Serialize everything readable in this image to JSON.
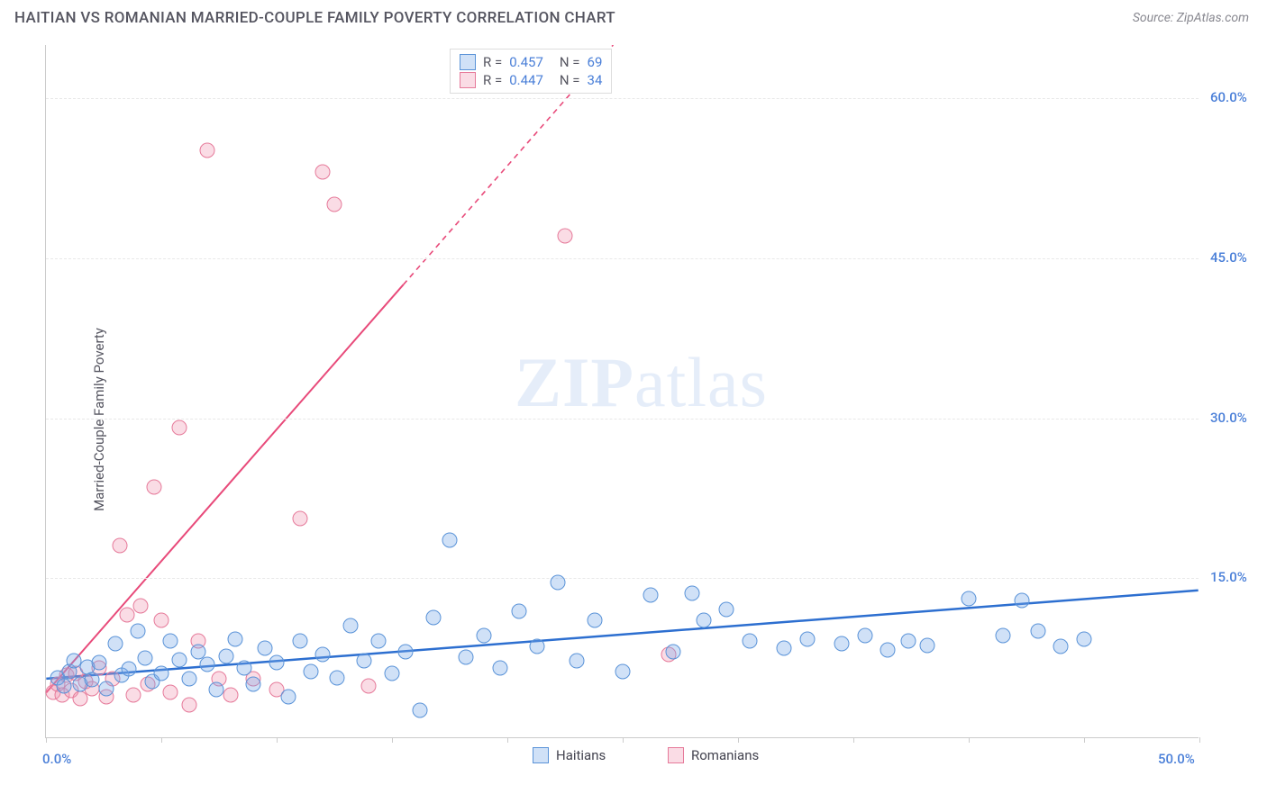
{
  "header": {
    "title": "HAITIAN VS ROMANIAN MARRIED-COUPLE FAMILY POVERTY CORRELATION CHART",
    "source_prefix": "Source: ",
    "source_name": "ZipAtlas.com"
  },
  "y_axis": {
    "label": "Married-Couple Family Poverty"
  },
  "chart": {
    "type": "scatter",
    "xlim": [
      0,
      50
    ],
    "ylim": [
      0,
      65
    ],
    "x_ticks_minor": [
      0,
      5,
      10,
      15,
      20,
      25,
      30,
      35,
      40,
      45,
      50
    ],
    "x_ticks_labeled": [
      {
        "v": 0,
        "label": "0.0%"
      },
      {
        "v": 50,
        "label": "50.0%"
      }
    ],
    "y_ticks": [
      {
        "v": 15,
        "label": "15.0%"
      },
      {
        "v": 30,
        "label": "30.0%"
      },
      {
        "v": 45,
        "label": "45.0%"
      },
      {
        "v": 60,
        "label": "60.0%"
      }
    ],
    "grid_color": "#e8e8e8",
    "axis_color": "#cccccc",
    "background_color": "#ffffff",
    "tick_label_color": "#4a7fd8",
    "tick_label_fontsize": 15,
    "marker_radius": 8.5,
    "marker_stroke_width": 1.3,
    "series": [
      {
        "name": "Haitians",
        "fill": "rgba(120,170,232,0.35)",
        "stroke": "#5a93d8",
        "trend": {
          "x1": 0,
          "y1": 5.5,
          "x2": 50,
          "y2": 13.8,
          "color": "#2d6fd0",
          "width": 2.5,
          "dash": null,
          "extrap_to": null
        },
        "points": [
          [
            0.5,
            5.6
          ],
          [
            0.8,
            4.8
          ],
          [
            1.0,
            6.2
          ],
          [
            1.2,
            7.2
          ],
          [
            1.5,
            5.0
          ],
          [
            1.8,
            6.6
          ],
          [
            2.0,
            5.4
          ],
          [
            2.3,
            7.0
          ],
          [
            2.6,
            4.6
          ],
          [
            3.0,
            8.8
          ],
          [
            3.3,
            5.8
          ],
          [
            3.6,
            6.4
          ],
          [
            4.0,
            10.0
          ],
          [
            4.3,
            7.4
          ],
          [
            4.6,
            5.2
          ],
          [
            5.0,
            6.0
          ],
          [
            5.4,
            9.0
          ],
          [
            5.8,
            7.3
          ],
          [
            6.2,
            5.5
          ],
          [
            6.6,
            8.0
          ],
          [
            7.0,
            6.8
          ],
          [
            7.4,
            4.5
          ],
          [
            7.8,
            7.6
          ],
          [
            8.2,
            9.2
          ],
          [
            8.6,
            6.5
          ],
          [
            9.0,
            5.0
          ],
          [
            9.5,
            8.4
          ],
          [
            10.0,
            7.0
          ],
          [
            10.5,
            3.8
          ],
          [
            11.0,
            9.0
          ],
          [
            11.5,
            6.2
          ],
          [
            12.0,
            7.8
          ],
          [
            12.6,
            5.6
          ],
          [
            13.2,
            10.5
          ],
          [
            13.8,
            7.2
          ],
          [
            14.4,
            9.0
          ],
          [
            15.0,
            6.0
          ],
          [
            15.6,
            8.0
          ],
          [
            16.2,
            2.5
          ],
          [
            16.8,
            11.2
          ],
          [
            17.5,
            18.5
          ],
          [
            18.2,
            7.5
          ],
          [
            19.0,
            9.5
          ],
          [
            19.7,
            6.5
          ],
          [
            20.5,
            11.8
          ],
          [
            21.3,
            8.5
          ],
          [
            22.2,
            14.5
          ],
          [
            23.0,
            7.2
          ],
          [
            23.8,
            11.0
          ],
          [
            25.0,
            6.2
          ],
          [
            26.2,
            13.3
          ],
          [
            27.2,
            8.0
          ],
          [
            28.0,
            13.5
          ],
          [
            28.5,
            11.0
          ],
          [
            29.5,
            12.0
          ],
          [
            30.5,
            9.0
          ],
          [
            32.0,
            8.4
          ],
          [
            33.0,
            9.2
          ],
          [
            34.5,
            8.8
          ],
          [
            35.5,
            9.5
          ],
          [
            36.5,
            8.2
          ],
          [
            37.4,
            9.0
          ],
          [
            38.2,
            8.6
          ],
          [
            40.0,
            13.0
          ],
          [
            41.5,
            9.5
          ],
          [
            42.3,
            12.8
          ],
          [
            43.0,
            10.0
          ],
          [
            44.0,
            8.5
          ],
          [
            45.0,
            9.2
          ]
        ]
      },
      {
        "name": "Romanians",
        "fill": "rgba(240,150,175,0.33)",
        "stroke": "#e67a9a",
        "trend": {
          "x1": 0,
          "y1": 4.2,
          "x2": 15.5,
          "y2": 42.5,
          "color": "#e84a7a",
          "width": 2,
          "dash": null,
          "extrap_to": {
            "x": 50,
            "y": 127,
            "dash": "6,5"
          }
        },
        "points": [
          [
            0.3,
            4.2
          ],
          [
            0.5,
            5.0
          ],
          [
            0.7,
            4.0
          ],
          [
            0.9,
            5.8
          ],
          [
            1.1,
            4.4
          ],
          [
            1.3,
            6.0
          ],
          [
            1.5,
            3.6
          ],
          [
            1.7,
            5.2
          ],
          [
            2.0,
            4.6
          ],
          [
            2.3,
            6.5
          ],
          [
            2.6,
            3.8
          ],
          [
            2.9,
            5.5
          ],
          [
            3.2,
            18.0
          ],
          [
            3.5,
            11.5
          ],
          [
            3.8,
            4.0
          ],
          [
            4.1,
            12.3
          ],
          [
            4.4,
            5.0
          ],
          [
            4.7,
            23.5
          ],
          [
            5.0,
            11.0
          ],
          [
            5.4,
            4.2
          ],
          [
            5.8,
            29.0
          ],
          [
            6.2,
            3.0
          ],
          [
            6.6,
            9.0
          ],
          [
            7.0,
            55.0
          ],
          [
            7.5,
            5.5
          ],
          [
            8.0,
            4.0
          ],
          [
            9.0,
            5.5
          ],
          [
            10.0,
            4.5
          ],
          [
            11.0,
            20.5
          ],
          [
            12.0,
            53.0
          ],
          [
            12.5,
            50.0
          ],
          [
            14.0,
            4.8
          ],
          [
            22.5,
            47.0
          ],
          [
            27.0,
            7.8
          ]
        ]
      }
    ]
  },
  "legend_top": {
    "rows": [
      {
        "swatch_fill": "rgba(120,170,232,0.35)",
        "swatch_stroke": "#5a93d8",
        "r_label": "R =",
        "r_val": "0.457",
        "n_label": "N =",
        "n_val": "69"
      },
      {
        "swatch_fill": "rgba(240,150,175,0.33)",
        "swatch_stroke": "#e67a9a",
        "r_label": "R =",
        "r_val": "0.447",
        "n_label": "N =",
        "n_val": "34"
      }
    ]
  },
  "legend_bottom": [
    {
      "swatch_fill": "rgba(120,170,232,0.35)",
      "swatch_stroke": "#5a93d8",
      "label": "Haitians"
    },
    {
      "swatch_fill": "rgba(240,150,175,0.33)",
      "swatch_stroke": "#e67a9a",
      "label": "Romanians"
    }
  ],
  "watermark": {
    "part1": "ZIP",
    "part2": "atlas"
  }
}
